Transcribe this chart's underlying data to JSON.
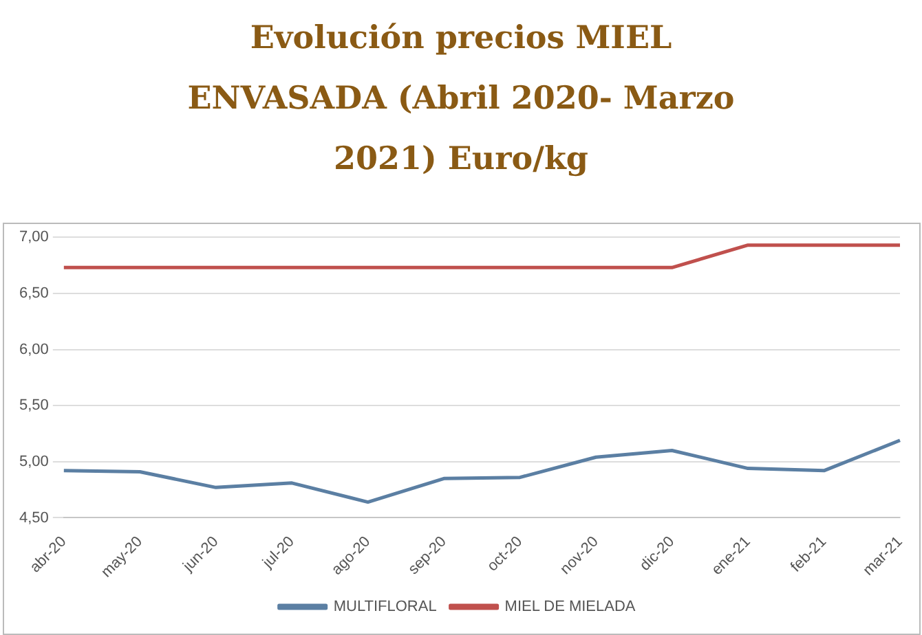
{
  "chart_data": {
    "type": "line",
    "title": "Evolución precios MIEL ENVASADA (Abril 2020- Marzo 2021) Euro/kg",
    "categories": [
      "abr-20",
      "may-20",
      "jun-20",
      "jul-20",
      "ago-20",
      "sep-20",
      "oct-20",
      "nov-20",
      "dic-20",
      "ene-21",
      "feb-21",
      "mar-21"
    ],
    "series": [
      {
        "name": "MULTIFLORAL",
        "color": "#5b7fa3",
        "values": [
          4.92,
          4.91,
          4.77,
          4.81,
          4.64,
          4.85,
          4.86,
          5.04,
          5.1,
          4.94,
          4.92,
          5.19
        ]
      },
      {
        "name": "MIEL DE MIELADA",
        "color": "#c0504d",
        "values": [
          6.73,
          6.73,
          6.73,
          6.73,
          6.73,
          6.73,
          6.73,
          6.73,
          6.73,
          6.93,
          6.93,
          6.93
        ]
      }
    ],
    "ylim": [
      4.5,
      7
    ],
    "yticks": [
      {
        "value": 4.5,
        "label": "4,50"
      },
      {
        "value": 5,
        "label": "5,00"
      },
      {
        "value": 5.5,
        "label": "5,50"
      },
      {
        "value": 6,
        "label": "6,00"
      },
      {
        "value": 6.5,
        "label": "6,50"
      },
      {
        "value": 7,
        "label": "7,00"
      }
    ],
    "grid": "y",
    "legend": "bottom",
    "marker": "none",
    "line_style": "solid"
  }
}
